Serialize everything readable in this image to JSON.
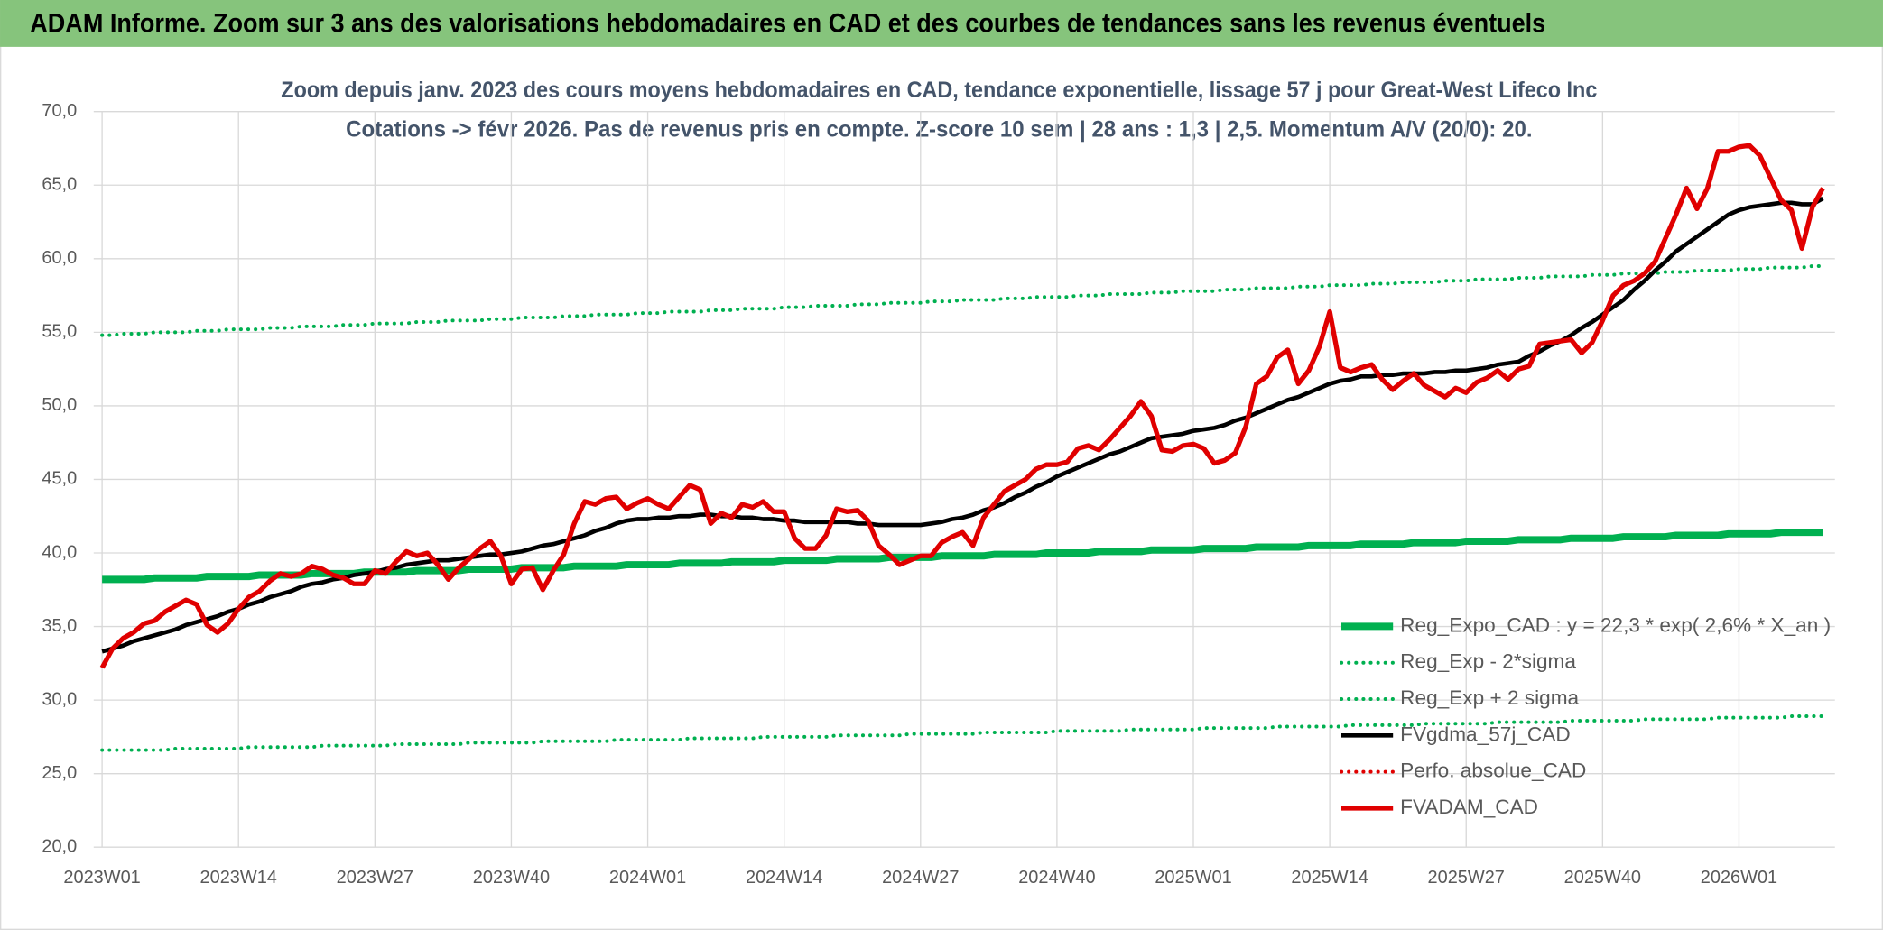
{
  "chart_data": {
    "type": "line",
    "title": "ADAM Informe. Zoom sur 3 ans des valorisations hebdomadaires en CAD et des courbes de tendances sans les revenus éventuels",
    "subtitle": [
      "Zoom depuis janv. 2023 des cours moyens hebdomadaires en CAD, tendance exponentielle, lissage 57 j pour Great-West Lifeco Inc",
      "Cotations -> févr 2026. Pas de revenus pris en compte. Z-score 10 sem | 28 ans : 1,3 | 2,5. Momentum A/V (20/0): 20."
    ],
    "categories": [
      "2023W01",
      null,
      null,
      null,
      null,
      null,
      null,
      null,
      null,
      null,
      null,
      null,
      null,
      "2023W14",
      null,
      null,
      null,
      null,
      null,
      null,
      null,
      null,
      null,
      null,
      null,
      null,
      "2023W27",
      null,
      null,
      null,
      null,
      null,
      null,
      null,
      null,
      null,
      null,
      null,
      null,
      "2023W40",
      null,
      null,
      null,
      null,
      null,
      null,
      null,
      null,
      null,
      null,
      null,
      null,
      "2024W01",
      null,
      null,
      null,
      null,
      null,
      null,
      null,
      null,
      null,
      null,
      null,
      null,
      "2024W14",
      null,
      null,
      null,
      null,
      null,
      null,
      null,
      null,
      null,
      null,
      null,
      null,
      "2024W27",
      null,
      null,
      null,
      null,
      null,
      null,
      null,
      null,
      null,
      null,
      null,
      null,
      "2024W40",
      null,
      null,
      null,
      null,
      null,
      null,
      null,
      null,
      null,
      null,
      null,
      null,
      "2025W01",
      null,
      null,
      null,
      null,
      null,
      null,
      null,
      null,
      null,
      null,
      null,
      null,
      "2025W14",
      null,
      null,
      null,
      null,
      null,
      null,
      null,
      null,
      null,
      null,
      null,
      null,
      "2025W27",
      null,
      null,
      null,
      null,
      null,
      null,
      null,
      null,
      null,
      null,
      null,
      null,
      "2025W40",
      null,
      null,
      null,
      null,
      null,
      null,
      null,
      null,
      null,
      null,
      null,
      null,
      "2026W01",
      null,
      null,
      null,
      null,
      null,
      null,
      null,
      null
    ],
    "ylim": [
      20,
      70
    ],
    "yticks": [
      {
        "value": 20,
        "label": "20,0"
      },
      {
        "value": 25,
        "label": "25,0"
      },
      {
        "value": 30,
        "label": "30,0"
      },
      {
        "value": 35,
        "label": "35,0"
      },
      {
        "value": 40,
        "label": "40,0"
      },
      {
        "value": 45,
        "label": "45,0"
      },
      {
        "value": 50,
        "label": "50,0"
      },
      {
        "value": 55,
        "label": "55,0"
      },
      {
        "value": 60,
        "label": "60,0"
      },
      {
        "value": 65,
        "label": "65,0"
      },
      {
        "value": 70,
        "label": "70,0"
      }
    ],
    "grid": true,
    "legend": "bottom-right",
    "series": [
      {
        "name": "Reg_Expo_CAD : y = 22,3 * exp( 2,6% *  X_an )",
        "color": "#00b050",
        "style": "solid",
        "width": 6,
        "values": [
          38.2,
          38.2,
          38.2,
          38.2,
          38.2,
          38.3,
          38.3,
          38.3,
          38.3,
          38.3,
          38.4,
          38.4,
          38.4,
          38.4,
          38.4,
          38.5,
          38.5,
          38.5,
          38.5,
          38.5,
          38.6,
          38.6,
          38.6,
          38.6,
          38.6,
          38.7,
          38.7,
          38.7,
          38.7,
          38.7,
          38.8,
          38.8,
          38.8,
          38.8,
          38.8,
          38.9,
          38.9,
          38.9,
          38.9,
          38.9,
          39.0,
          39.0,
          39.0,
          39.0,
          39.0,
          39.1,
          39.1,
          39.1,
          39.1,
          39.1,
          39.2,
          39.2,
          39.2,
          39.2,
          39.2,
          39.3,
          39.3,
          39.3,
          39.3,
          39.3,
          39.4,
          39.4,
          39.4,
          39.4,
          39.4,
          39.5,
          39.5,
          39.5,
          39.5,
          39.5,
          39.6,
          39.6,
          39.6,
          39.6,
          39.6,
          39.7,
          39.7,
          39.7,
          39.7,
          39.7,
          39.8,
          39.8,
          39.8,
          39.8,
          39.8,
          39.9,
          39.9,
          39.9,
          39.9,
          39.9,
          40.0,
          40.0,
          40.0,
          40.0,
          40.0,
          40.1,
          40.1,
          40.1,
          40.1,
          40.1,
          40.2,
          40.2,
          40.2,
          40.2,
          40.2,
          40.3,
          40.3,
          40.3,
          40.3,
          40.3,
          40.4,
          40.4,
          40.4,
          40.4,
          40.4,
          40.5,
          40.5,
          40.5,
          40.5,
          40.5,
          40.6,
          40.6,
          40.6,
          40.6,
          40.6,
          40.7,
          40.7,
          40.7,
          40.7,
          40.7,
          40.8,
          40.8,
          40.8,
          40.8,
          40.8,
          40.9,
          40.9,
          40.9,
          40.9,
          40.9,
          41.0,
          41.0,
          41.0,
          41.0,
          41.0,
          41.1,
          41.1,
          41.1,
          41.1,
          41.1,
          41.2,
          41.2,
          41.2,
          41.2,
          41.2,
          41.3,
          41.3,
          41.3,
          41.3,
          41.3,
          41.4,
          41.4,
          41.4,
          41.4,
          41.4
        ]
      },
      {
        "name": "Reg_Exp - 2*sigma",
        "color": "#00b050",
        "style": "dotted",
        "width": 3,
        "values": [
          26.6,
          26.6,
          26.6,
          26.6,
          26.6,
          26.6,
          26.6,
          26.7,
          26.7,
          26.7,
          26.7,
          26.7,
          26.7,
          26.7,
          26.8,
          26.8,
          26.8,
          26.8,
          26.8,
          26.8,
          26.8,
          26.9,
          26.9,
          26.9,
          26.9,
          26.9,
          26.9,
          26.9,
          27.0,
          27.0,
          27.0,
          27.0,
          27.0,
          27.0,
          27.0,
          27.1,
          27.1,
          27.1,
          27.1,
          27.1,
          27.1,
          27.1,
          27.2,
          27.2,
          27.2,
          27.2,
          27.2,
          27.2,
          27.2,
          27.3,
          27.3,
          27.3,
          27.3,
          27.3,
          27.3,
          27.3,
          27.4,
          27.4,
          27.4,
          27.4,
          27.4,
          27.4,
          27.4,
          27.5,
          27.5,
          27.5,
          27.5,
          27.5,
          27.5,
          27.5,
          27.6,
          27.6,
          27.6,
          27.6,
          27.6,
          27.6,
          27.6,
          27.7,
          27.7,
          27.7,
          27.7,
          27.7,
          27.7,
          27.7,
          27.8,
          27.8,
          27.8,
          27.8,
          27.8,
          27.8,
          27.8,
          27.9,
          27.9,
          27.9,
          27.9,
          27.9,
          27.9,
          27.9,
          28.0,
          28.0,
          28.0,
          28.0,
          28.0,
          28.0,
          28.0,
          28.1,
          28.1,
          28.1,
          28.1,
          28.1,
          28.1,
          28.1,
          28.2,
          28.2,
          28.2,
          28.2,
          28.2,
          28.2,
          28.2,
          28.3,
          28.3,
          28.3,
          28.3,
          28.3,
          28.3,
          28.3,
          28.4,
          28.4,
          28.4,
          28.4,
          28.4,
          28.4,
          28.4,
          28.5,
          28.5,
          28.5,
          28.5,
          28.5,
          28.5,
          28.5,
          28.6,
          28.6,
          28.6,
          28.6,
          28.6,
          28.6,
          28.6,
          28.7,
          28.7,
          28.7,
          28.7,
          28.7,
          28.7,
          28.7,
          28.8,
          28.8,
          28.8,
          28.8,
          28.8,
          28.8,
          28.8,
          28.9,
          28.9,
          28.9,
          28.9
        ]
      },
      {
        "name": "Reg_Exp + 2 sigma",
        "color": "#00b050",
        "style": "dotted",
        "width": 3,
        "values": [
          54.8,
          54.8,
          54.9,
          54.9,
          54.9,
          55.0,
          55.0,
          55.0,
          55.0,
          55.1,
          55.1,
          55.1,
          55.2,
          55.2,
          55.2,
          55.2,
          55.3,
          55.3,
          55.3,
          55.4,
          55.4,
          55.4,
          55.4,
          55.5,
          55.5,
          55.5,
          55.6,
          55.6,
          55.6,
          55.6,
          55.7,
          55.7,
          55.7,
          55.8,
          55.8,
          55.8,
          55.8,
          55.9,
          55.9,
          55.9,
          56.0,
          56.0,
          56.0,
          56.0,
          56.1,
          56.1,
          56.1,
          56.2,
          56.2,
          56.2,
          56.2,
          56.3,
          56.3,
          56.3,
          56.4,
          56.4,
          56.4,
          56.4,
          56.5,
          56.5,
          56.5,
          56.6,
          56.6,
          56.6,
          56.6,
          56.7,
          56.7,
          56.7,
          56.8,
          56.8,
          56.8,
          56.8,
          56.9,
          56.9,
          56.9,
          57.0,
          57.0,
          57.0,
          57.0,
          57.1,
          57.1,
          57.1,
          57.2,
          57.2,
          57.2,
          57.2,
          57.3,
          57.3,
          57.3,
          57.4,
          57.4,
          57.4,
          57.4,
          57.5,
          57.5,
          57.5,
          57.6,
          57.6,
          57.6,
          57.6,
          57.7,
          57.7,
          57.7,
          57.8,
          57.8,
          57.8,
          57.8,
          57.9,
          57.9,
          57.9,
          58.0,
          58.0,
          58.0,
          58.0,
          58.1,
          58.1,
          58.1,
          58.2,
          58.2,
          58.2,
          58.2,
          58.3,
          58.3,
          58.3,
          58.4,
          58.4,
          58.4,
          58.4,
          58.5,
          58.5,
          58.5,
          58.6,
          58.6,
          58.6,
          58.6,
          58.7,
          58.7,
          58.7,
          58.8,
          58.8,
          58.8,
          58.8,
          58.9,
          58.9,
          58.9,
          59.0,
          59.0,
          59.0,
          59.0,
          59.1,
          59.1,
          59.1,
          59.2,
          59.2,
          59.2,
          59.2,
          59.3,
          59.3,
          59.3,
          59.4,
          59.4,
          59.4,
          59.4,
          59.5,
          59.5
        ]
      },
      {
        "name": "FVgdma_57j_CAD",
        "color": "#000000",
        "style": "solid",
        "width": 3.5,
        "values": [
          33.3,
          33.5,
          33.7,
          34.0,
          34.2,
          34.4,
          34.6,
          34.8,
          35.1,
          35.3,
          35.5,
          35.7,
          36.0,
          36.2,
          36.5,
          36.7,
          37.0,
          37.2,
          37.4,
          37.7,
          37.9,
          38.0,
          38.2,
          38.3,
          38.5,
          38.6,
          38.7,
          38.9,
          39.0,
          39.2,
          39.3,
          39.4,
          39.5,
          39.5,
          39.6,
          39.7,
          39.8,
          39.9,
          39.9,
          40.0,
          40.1,
          40.3,
          40.5,
          40.6,
          40.8,
          41.0,
          41.2,
          41.5,
          41.7,
          42.0,
          42.2,
          42.3,
          42.3,
          42.4,
          42.4,
          42.5,
          42.5,
          42.6,
          42.6,
          42.5,
          42.5,
          42.4,
          42.4,
          42.3,
          42.3,
          42.2,
          42.2,
          42.1,
          42.1,
          42.1,
          42.1,
          42.1,
          42.0,
          42.0,
          41.9,
          41.9,
          41.9,
          41.9,
          41.9,
          42.0,
          42.1,
          42.3,
          42.4,
          42.6,
          42.9,
          43.1,
          43.4,
          43.8,
          44.1,
          44.5,
          44.8,
          45.2,
          45.5,
          45.8,
          46.1,
          46.4,
          46.7,
          46.9,
          47.2,
          47.5,
          47.8,
          47.9,
          48.0,
          48.1,
          48.3,
          48.4,
          48.5,
          48.7,
          49.0,
          49.2,
          49.5,
          49.8,
          50.1,
          50.4,
          50.6,
          50.9,
          51.2,
          51.5,
          51.7,
          51.8,
          52.0,
          52.0,
          52.1,
          52.1,
          52.2,
          52.2,
          52.2,
          52.3,
          52.3,
          52.4,
          52.4,
          52.5,
          52.6,
          52.8,
          52.9,
          53.0,
          53.4,
          53.7,
          54.1,
          54.4,
          54.8,
          55.3,
          55.7,
          56.2,
          56.7,
          57.2,
          57.9,
          58.5,
          59.2,
          59.8,
          60.5,
          61.0,
          61.5,
          62.0,
          62.5,
          63.0,
          63.3,
          63.5,
          63.6,
          63.7,
          63.8,
          63.8,
          63.7,
          63.7,
          64.1
        ]
      },
      {
        "name": "Perfo. absolue_CAD",
        "color": "#e00000",
        "style": "dotted",
        "width": 3
      },
      {
        "name": "FVADAM_CAD",
        "color": "#e00000",
        "style": "solid",
        "width": 4,
        "values": [
          32.2,
          33.5,
          34.2,
          34.6,
          35.2,
          35.4,
          36.0,
          36.4,
          36.8,
          36.5,
          35.1,
          34.6,
          35.2,
          36.2,
          37.0,
          37.4,
          38.1,
          38.6,
          38.4,
          38.6,
          39.1,
          38.9,
          38.5,
          38.3,
          37.9,
          37.9,
          38.8,
          38.6,
          39.4,
          40.1,
          39.8,
          40.0,
          39.2,
          38.2,
          39.0,
          39.6,
          40.3,
          40.8,
          39.8,
          37.9,
          38.9,
          39.0,
          37.5,
          38.8,
          39.9,
          42.0,
          43.5,
          43.3,
          43.7,
          43.8,
          43.0,
          43.4,
          43.7,
          43.3,
          43.0,
          43.8,
          44.6,
          44.3,
          42.0,
          42.7,
          42.4,
          43.3,
          43.1,
          43.5,
          42.8,
          42.8,
          41.0,
          40.3,
          40.3,
          41.2,
          43.0,
          42.8,
          42.9,
          42.2,
          40.5,
          39.9,
          39.2,
          39.5,
          39.8,
          39.8,
          40.7,
          41.1,
          41.4,
          40.5,
          42.4,
          43.3,
          44.2,
          44.6,
          45.0,
          45.7,
          46.0,
          46.0,
          46.2,
          47.1,
          47.3,
          47.0,
          47.7,
          48.5,
          49.3,
          50.3,
          49.3,
          47.0,
          46.9,
          47.3,
          47.4,
          47.1,
          46.1,
          46.3,
          46.8,
          48.6,
          51.5,
          52.0,
          53.3,
          53.8,
          51.5,
          52.4,
          54.0,
          56.4,
          52.6,
          52.3,
          52.6,
          52.8,
          51.8,
          51.1,
          51.7,
          52.2,
          51.4,
          51.0,
          50.6,
          51.2,
          50.9,
          51.6,
          51.9,
          52.4,
          51.8,
          52.5,
          52.7,
          54.2,
          54.3,
          54.4,
          54.5,
          53.6,
          54.3,
          55.8,
          57.5,
          58.2,
          58.5,
          59.0,
          59.8,
          61.4,
          63.0,
          64.8,
          63.4,
          64.8,
          67.3,
          67.3,
          67.6,
          67.7,
          67.0,
          65.5,
          64.0,
          63.3,
          60.7,
          63.5,
          64.8
        ]
      }
    ]
  }
}
